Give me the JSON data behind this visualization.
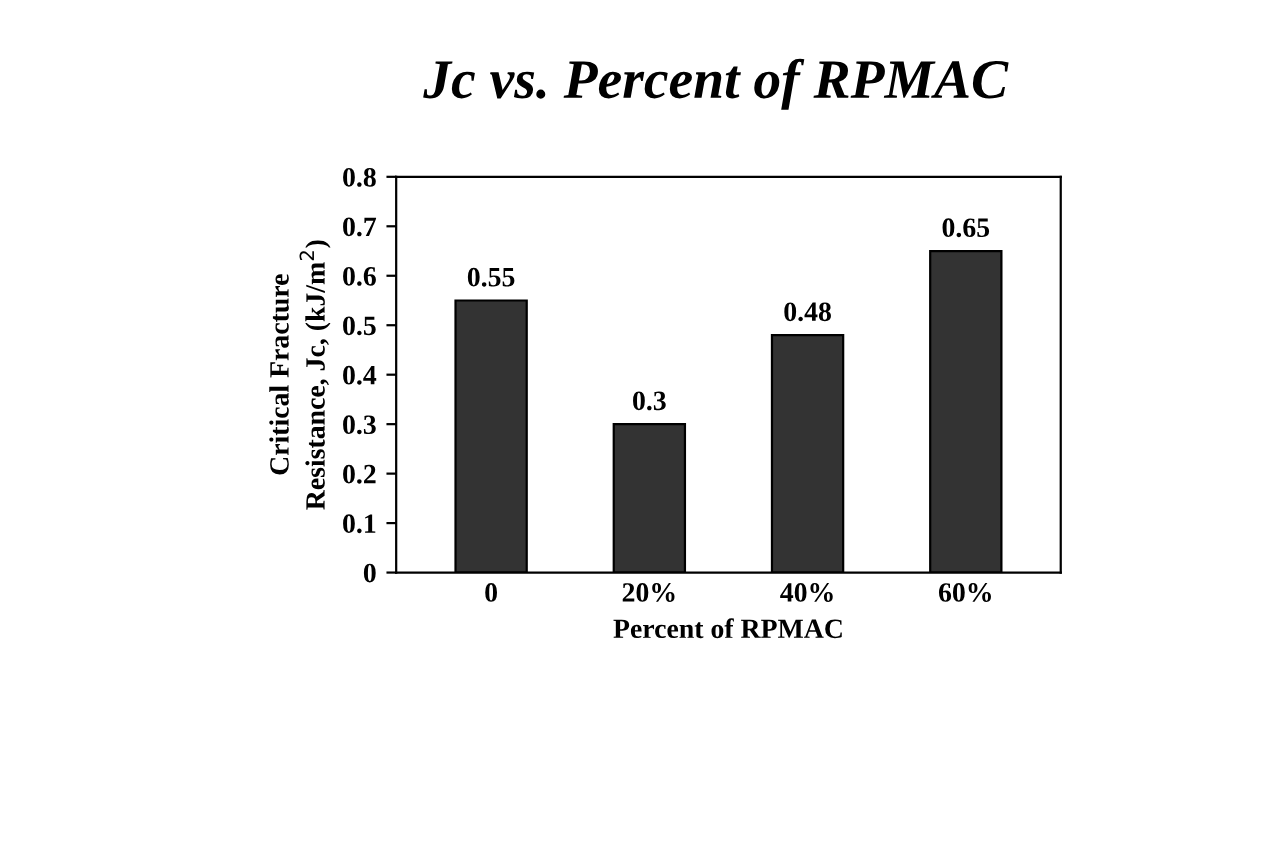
{
  "chart_data": {
    "type": "bar",
    "title": "Jc vs. Percent of RPMAC",
    "xlabel": "Percent of RPMAC",
    "ylabel": "Critical Fracture\nResistance, Jc, (kJ/m$^{2}$)",
    "categories": [
      "0",
      "20%",
      "40%",
      "60%"
    ],
    "values": [
      0.55,
      0.3,
      0.48,
      0.65
    ],
    "color": "#333333",
    "ylim": [
      0,
      0.8
    ],
    "yticks": [
      0,
      0.1,
      0.2,
      0.3,
      0.4,
      0.5,
      0.6,
      0.7,
      0.8
    ],
    "data_labels": true,
    "grid": false
  }
}
